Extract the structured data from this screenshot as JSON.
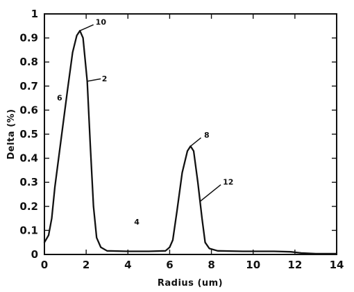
{
  "chart_data": {
    "type": "line",
    "title": "",
    "xlabel": "Radius (um)",
    "ylabel": "Delta (%)",
    "xlim": [
      0,
      14
    ],
    "ylim": [
      0,
      1
    ],
    "x_ticks": [
      0,
      2,
      4,
      6,
      8,
      10,
      12,
      14
    ],
    "y_ticks": [
      0,
      0.1,
      0.2,
      0.3,
      0.4,
      0.5,
      0.6,
      0.7,
      0.8,
      0.9,
      1
    ],
    "x_tick_labels": [
      "0",
      "2",
      "4",
      "6",
      "8",
      "10",
      "12",
      "14"
    ],
    "y_tick_labels": [
      "0",
      "0.1",
      "0.2",
      "0.3",
      "0.4",
      "0.5",
      "0.6",
      "0.7",
      "0.8",
      "0.9",
      "1"
    ],
    "grid": false,
    "legend": "none",
    "series": [
      {
        "values": [
          [
            0.0,
            0.05
          ],
          [
            0.2,
            0.08
          ],
          [
            0.35,
            0.15
          ],
          [
            0.5,
            0.28
          ],
          [
            0.8,
            0.48
          ],
          [
            1.1,
            0.68
          ],
          [
            1.35,
            0.84
          ],
          [
            1.55,
            0.91
          ],
          [
            1.7,
            0.93
          ],
          [
            1.85,
            0.9
          ],
          [
            2.05,
            0.72
          ],
          [
            2.2,
            0.45
          ],
          [
            2.35,
            0.2
          ],
          [
            2.5,
            0.07
          ],
          [
            2.7,
            0.03
          ],
          [
            3.0,
            0.015
          ],
          [
            4.0,
            0.013
          ],
          [
            5.0,
            0.013
          ],
          [
            5.8,
            0.015
          ],
          [
            6.0,
            0.03
          ],
          [
            6.15,
            0.06
          ],
          [
            6.35,
            0.18
          ],
          [
            6.6,
            0.34
          ],
          [
            6.85,
            0.43
          ],
          [
            7.0,
            0.45
          ],
          [
            7.15,
            0.43
          ],
          [
            7.35,
            0.3
          ],
          [
            7.55,
            0.15
          ],
          [
            7.7,
            0.05
          ],
          [
            7.9,
            0.025
          ],
          [
            8.3,
            0.015
          ],
          [
            9.5,
            0.013
          ],
          [
            11.0,
            0.013
          ],
          [
            11.8,
            0.011
          ],
          [
            12.3,
            0.006
          ],
          [
            13.0,
            0.003
          ],
          [
            14.0,
            0.003
          ]
        ]
      }
    ],
    "annotations": [
      {
        "id": "label-10",
        "text": "10",
        "text_x": 2.45,
        "text_y": 0.955,
        "line": [
          [
            1.7,
            0.93
          ],
          [
            2.35,
            0.955
          ]
        ]
      },
      {
        "id": "label-2",
        "text": "2",
        "text_x": 2.75,
        "text_y": 0.72,
        "line": [
          [
            2.05,
            0.72
          ],
          [
            2.7,
            0.73
          ]
        ]
      },
      {
        "id": "label-6",
        "text": "6",
        "text_x": 0.6,
        "text_y": 0.64,
        "line": []
      },
      {
        "id": "label-8",
        "text": "8",
        "text_x": 7.65,
        "text_y": 0.485,
        "line": [
          [
            7.0,
            0.45
          ],
          [
            7.5,
            0.485
          ]
        ]
      },
      {
        "id": "label-12",
        "text": "12",
        "text_x": 8.55,
        "text_y": 0.29,
        "line": [
          [
            7.45,
            0.22
          ],
          [
            8.45,
            0.29
          ]
        ]
      },
      {
        "id": "label-4",
        "text": "4",
        "text_x": 4.3,
        "text_y": 0.125,
        "line": []
      }
    ],
    "colors": {
      "line": "#111111",
      "axis": "#111111",
      "text": "#111111"
    }
  }
}
